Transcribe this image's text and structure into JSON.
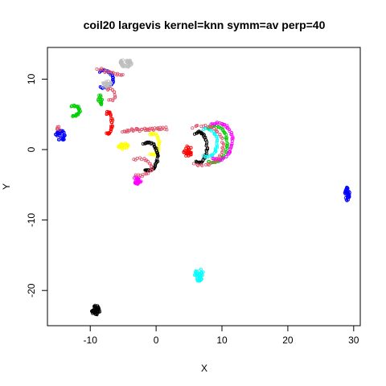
{
  "chart_data": {
    "type": "scatter",
    "title": "coil20 largevis kernel=knn symm=av perp=40",
    "xlabel": "X",
    "ylabel": "Y",
    "xlim": [
      -16.5,
      31
    ],
    "ylim": [
      -25,
      14.5
    ],
    "x_ticks": [
      -10,
      0,
      10,
      20,
      30
    ],
    "y_ticks": [
      -20,
      -10,
      0,
      10
    ],
    "x_tick_labels": [
      "-10",
      "0",
      "10",
      "20",
      "30"
    ],
    "y_tick_labels": [
      "-20",
      "-10",
      "0",
      "10"
    ],
    "grid": false,
    "legend": "none",
    "marker": "open-circle",
    "clusters": [
      {
        "color": "#0000FF",
        "kind": "blob",
        "cx": -14.5,
        "cy": 2.0,
        "rx": 0.8,
        "ry": 0.8,
        "n": 40
      },
      {
        "color": "#0000FF",
        "kind": "arc",
        "cx": -8.0,
        "cy": 10.0,
        "rx": 1.5,
        "ry": 1.2,
        "n": 40
      },
      {
        "color": "#0000FF",
        "kind": "blob",
        "cx": 29.0,
        "cy": -6.3,
        "rx": 0.4,
        "ry": 1.0,
        "n": 35
      },
      {
        "color": "#BEBEBE",
        "kind": "blob",
        "cx": -4.5,
        "cy": 12.3,
        "rx": 1.0,
        "ry": 0.6,
        "n": 40
      },
      {
        "color": "#BEBEBE",
        "kind": "blob",
        "cx": -7.5,
        "cy": 9.2,
        "rx": 0.8,
        "ry": 0.6,
        "n": 30
      },
      {
        "color": "#00CD00",
        "kind": "arc",
        "cx": -12.5,
        "cy": 5.5,
        "rx": 0.9,
        "ry": 0.7,
        "n": 30
      },
      {
        "color": "#00CD00",
        "kind": "blob",
        "cx": -8.5,
        "cy": 7.0,
        "rx": 0.4,
        "ry": 0.8,
        "n": 18
      },
      {
        "color": "#FF0000",
        "kind": "arc",
        "cx": -7.3,
        "cy": 3.8,
        "rx": 0.6,
        "ry": 1.5,
        "n": 35
      },
      {
        "color": "#FF0000",
        "kind": "blob",
        "cx": 4.8,
        "cy": -0.2,
        "rx": 0.7,
        "ry": 0.8,
        "n": 35
      },
      {
        "color": "#FFFF00",
        "kind": "blob",
        "cx": -5.0,
        "cy": 0.5,
        "rx": 0.8,
        "ry": 0.5,
        "n": 28
      },
      {
        "color": "#FFFF00",
        "kind": "arc",
        "cx": -0.5,
        "cy": 0.8,
        "rx": 1.0,
        "ry": 1.5,
        "n": 32
      },
      {
        "color": "#000000",
        "kind": "arc",
        "cx": -1.2,
        "cy": -1.0,
        "rx": 1.4,
        "ry": 2.0,
        "n": 50
      },
      {
        "color": "#000000",
        "kind": "arc",
        "cx": 6.5,
        "cy": 0.3,
        "rx": 1.2,
        "ry": 2.2,
        "n": 40
      },
      {
        "color": "#000000",
        "kind": "blob",
        "cx": -9.2,
        "cy": -22.8,
        "rx": 0.7,
        "ry": 0.7,
        "n": 40
      },
      {
        "color": "#00FFFF",
        "kind": "arc",
        "cx": 7.8,
        "cy": 1.0,
        "rx": 1.5,
        "ry": 2.0,
        "n": 38
      },
      {
        "color": "#00FFFF",
        "kind": "blob",
        "cx": 6.5,
        "cy": -17.8,
        "rx": 0.8,
        "ry": 0.9,
        "n": 40
      },
      {
        "color": "#00CD00",
        "kind": "arc",
        "cx": 8.8,
        "cy": 0.8,
        "rx": 2.0,
        "ry": 2.6,
        "n": 50
      },
      {
        "color": "#FF00FF",
        "kind": "blob",
        "cx": -2.8,
        "cy": -4.3,
        "rx": 0.6,
        "ry": 0.6,
        "n": 32
      },
      {
        "color": "#FF00FF",
        "kind": "arc",
        "cx": 9.4,
        "cy": 1.2,
        "rx": 2.2,
        "ry": 2.6,
        "n": 50
      },
      {
        "color": "#DF536B",
        "kind": "line",
        "x0": -5.0,
        "y0": 2.7,
        "x1": 1.5,
        "y1": 3.0,
        "n": 45
      },
      {
        "color": "#DF536B",
        "kind": "line",
        "x0": -9.0,
        "y0": 11.5,
        "x1": -5.0,
        "y1": 10.5,
        "n": 18
      },
      {
        "color": "#DF536B",
        "kind": "arc",
        "cx": -2.5,
        "cy": -2.5,
        "rx": 1.8,
        "ry": 1.2,
        "n": 25
      },
      {
        "color": "#DF536B",
        "kind": "blob",
        "cx": -14.8,
        "cy": 3.0,
        "rx": 0.3,
        "ry": 0.3,
        "n": 6
      },
      {
        "color": "#DF536B",
        "kind": "arc",
        "cx": -7.0,
        "cy": 7.8,
        "rx": 0.8,
        "ry": 0.8,
        "n": 14
      },
      {
        "color": "#DF536B",
        "kind": "arc",
        "cx": 7.0,
        "cy": 0.6,
        "rx": 3.2,
        "ry": 2.8,
        "n": 40
      }
    ]
  }
}
